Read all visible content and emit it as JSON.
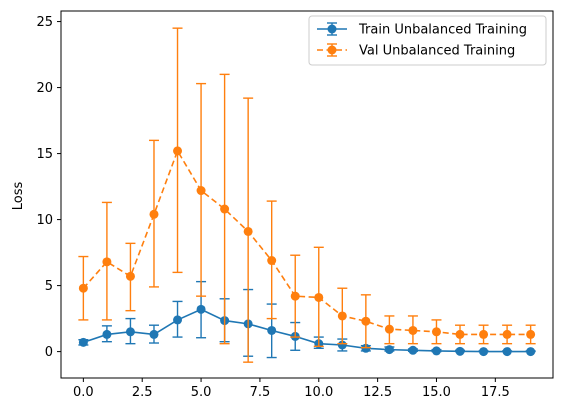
{
  "chart_data": {
    "type": "line",
    "title": "",
    "xlabel": "",
    "ylabel": "Loss",
    "xlim": [
      -0.95,
      19.95
    ],
    "ylim": [
      -2.0,
      25.8
    ],
    "xticks": [
      0.0,
      2.5,
      5.0,
      7.5,
      10.0,
      12.5,
      15.0,
      17.5
    ],
    "xtick_labels": [
      "0.0",
      "2.5",
      "5.0",
      "7.5",
      "10.0",
      "12.5",
      "15.0",
      "17.5"
    ],
    "yticks": [
      0,
      5,
      10,
      15,
      20,
      25
    ],
    "ytick_labels": [
      "0",
      "5",
      "10",
      "15",
      "20",
      "25"
    ],
    "grid": false,
    "legend_position": "top-right",
    "x": [
      0,
      1,
      2,
      3,
      4,
      5,
      6,
      7,
      8,
      9,
      10,
      11,
      12,
      13,
      14,
      15,
      16,
      17,
      18,
      19
    ],
    "series": [
      {
        "name": "Train Unbalanced Training",
        "color": "#1f77b4",
        "linestyle": "solid",
        "values": [
          0.7,
          1.3,
          1.5,
          1.3,
          2.4,
          3.2,
          2.35,
          2.1,
          1.6,
          1.15,
          0.6,
          0.5,
          0.25,
          0.15,
          0.1,
          0.05,
          0.02,
          0.0,
          0.0,
          0.0
        ],
        "err_low": [
          0.5,
          0.75,
          0.6,
          0.65,
          1.1,
          1.05,
          0.75,
          -0.35,
          -0.45,
          0.1,
          0.25,
          0.05,
          0.05,
          0.05,
          0.02,
          0.0,
          0.0,
          0.0,
          0.0,
          0.0
        ],
        "err_high": [
          0.9,
          1.95,
          2.5,
          2.0,
          3.8,
          5.3,
          4.0,
          4.7,
          3.6,
          2.2,
          1.1,
          0.95,
          0.45,
          0.35,
          0.2,
          0.15,
          0.1,
          0.05,
          0.05,
          0.05
        ]
      },
      {
        "name": "Val Unbalanced Training",
        "color": "#ff7f0e",
        "linestyle": "dashed",
        "values": [
          4.8,
          6.8,
          5.7,
          10.4,
          15.2,
          12.2,
          10.8,
          9.1,
          6.9,
          4.2,
          4.1,
          2.7,
          2.3,
          1.7,
          1.6,
          1.5,
          1.3,
          1.3,
          1.3,
          1.3
        ],
        "err_low": [
          2.4,
          2.4,
          3.1,
          4.9,
          6.0,
          4.2,
          0.6,
          -0.8,
          2.5,
          1.1,
          0.4,
          0.6,
          0.3,
          0.6,
          0.6,
          0.6,
          0.6,
          0.6,
          0.6,
          0.6
        ],
        "err_high": [
          7.2,
          11.3,
          8.2,
          16.0,
          24.5,
          20.3,
          21.0,
          19.2,
          11.4,
          7.3,
          7.9,
          4.8,
          4.3,
          2.7,
          2.7,
          2.4,
          2.0,
          2.0,
          2.0,
          2.0
        ]
      }
    ]
  }
}
